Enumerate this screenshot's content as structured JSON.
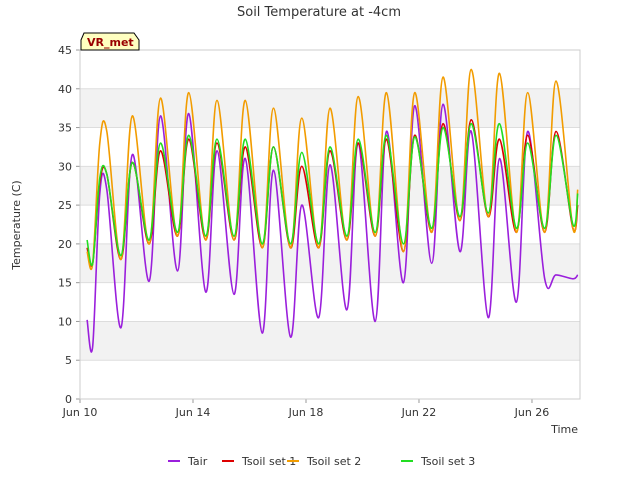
{
  "chart_data": {
    "type": "line",
    "title": "Soil Temperature at -4cm",
    "xlabel": "Time",
    "ylabel": "Temperature (C)",
    "badge": "VR_met",
    "ylim": [
      0,
      45
    ],
    "yticks": [
      0,
      5,
      10,
      15,
      20,
      25,
      30,
      35,
      40,
      45
    ],
    "xlim": [
      10,
      27.7
    ],
    "xticks": [
      {
        "value": 10,
        "label": "Jun 10"
      },
      {
        "value": 14,
        "label": "Jun 14"
      },
      {
        "value": 18,
        "label": "Jun 18"
      },
      {
        "value": 22,
        "label": "Jun 22"
      },
      {
        "value": 26,
        "label": "Jun 26"
      }
    ],
    "grid": true,
    "legend_position": "bottom",
    "series": [
      {
        "name": "Tair",
        "color": "#9a1fdc",
        "x": [
          10.25,
          10.45,
          10.7,
          10.95,
          11.45,
          11.85,
          12.45,
          12.85,
          13.45,
          13.85,
          14.45,
          14.85,
          15.45,
          15.85,
          16.45,
          16.85,
          17.45,
          17.85,
          18.45,
          18.85,
          19.45,
          19.85,
          20.45,
          20.85,
          21.45,
          21.85,
          22.45,
          22.85,
          23.45,
          23.85,
          24.45,
          24.85,
          25.45,
          25.85,
          26.45,
          26.85,
          27.45,
          27.62
        ],
        "y": [
          10.2,
          6.8,
          26.5,
          27,
          9.2,
          31.5,
          15.2,
          36.5,
          16.5,
          36.8,
          13.8,
          32,
          13.5,
          31,
          8.5,
          29.5,
          8,
          25,
          10.5,
          30.2,
          11.5,
          33,
          10,
          34.5,
          15,
          37.8,
          17.5,
          38,
          19,
          34.5,
          10.5,
          31,
          12.5,
          34.5,
          15.5,
          16,
          15.5,
          16
        ]
      },
      {
        "name": "Tsoil set 1",
        "color": "#dd0000",
        "x": [
          10.25,
          10.45,
          10.7,
          10.95,
          11.45,
          11.85,
          12.45,
          12.85,
          13.45,
          13.85,
          14.45,
          14.85,
          15.45,
          15.85,
          16.45,
          16.85,
          17.45,
          17.85,
          18.45,
          18.85,
          19.45,
          19.85,
          20.45,
          20.85,
          21.45,
          21.85,
          22.45,
          22.85,
          23.45,
          23.85,
          24.45,
          24.85,
          25.45,
          25.85,
          26.45,
          26.85,
          27.45,
          27.62
        ],
        "y": [
          19.5,
          17.5,
          28,
          29,
          18,
          30.5,
          20,
          32,
          21,
          33.5,
          20.5,
          33,
          20.5,
          32.5,
          19.5,
          32.5,
          19.5,
          30,
          19.5,
          32,
          20.5,
          33,
          21,
          33.5,
          19,
          34,
          21.5,
          35.5,
          23,
          36,
          23.5,
          33.5,
          21.5,
          34,
          21.5,
          34.5,
          22,
          25
        ]
      },
      {
        "name": "Tsoil set 2",
        "color": "#f29c00",
        "x": [
          10.25,
          10.45,
          10.7,
          10.95,
          11.45,
          11.85,
          12.45,
          12.85,
          13.45,
          13.85,
          14.45,
          14.85,
          15.45,
          15.85,
          16.45,
          16.85,
          17.45,
          17.85,
          18.45,
          18.85,
          19.45,
          19.85,
          20.45,
          20.85,
          21.45,
          21.85,
          22.45,
          22.85,
          23.45,
          23.85,
          24.45,
          24.85,
          25.45,
          25.85,
          26.45,
          26.85,
          27.45,
          27.62
        ],
        "y": [
          19,
          17.5,
          33,
          34.5,
          18,
          36.5,
          20,
          38.8,
          21,
          39.5,
          20.5,
          38.5,
          20.5,
          38.5,
          19.5,
          37.5,
          19.5,
          36.2,
          19.5,
          37.5,
          20.5,
          39,
          21,
          39.5,
          19,
          39.5,
          21.5,
          41.5,
          23,
          42.5,
          23.5,
          42,
          21.5,
          39.5,
          21.5,
          41,
          22,
          27
        ]
      },
      {
        "name": "Tsoil set 3",
        "color": "#22dd22",
        "x": [
          10.25,
          10.45,
          10.7,
          10.95,
          11.45,
          11.85,
          12.45,
          12.85,
          13.45,
          13.85,
          14.45,
          14.85,
          15.45,
          15.85,
          16.45,
          16.85,
          17.45,
          17.85,
          18.45,
          18.85,
          19.45,
          19.85,
          20.45,
          20.85,
          21.45,
          21.85,
          22.45,
          22.85,
          23.45,
          23.85,
          24.45,
          24.85,
          25.45,
          25.85,
          26.45,
          26.85,
          27.45,
          27.62
        ],
        "y": [
          20.5,
          17.5,
          28.5,
          29,
          18.5,
          30.5,
          20.5,
          33,
          21.5,
          34,
          21,
          33.5,
          21,
          33.5,
          20,
          32.5,
          20,
          31.8,
          20,
          32.5,
          21,
          33.5,
          21.5,
          34,
          20,
          33.8,
          22,
          35,
          23.5,
          35.5,
          24,
          35.5,
          22,
          33,
          22,
          34,
          22.5,
          26.5
        ]
      }
    ]
  }
}
